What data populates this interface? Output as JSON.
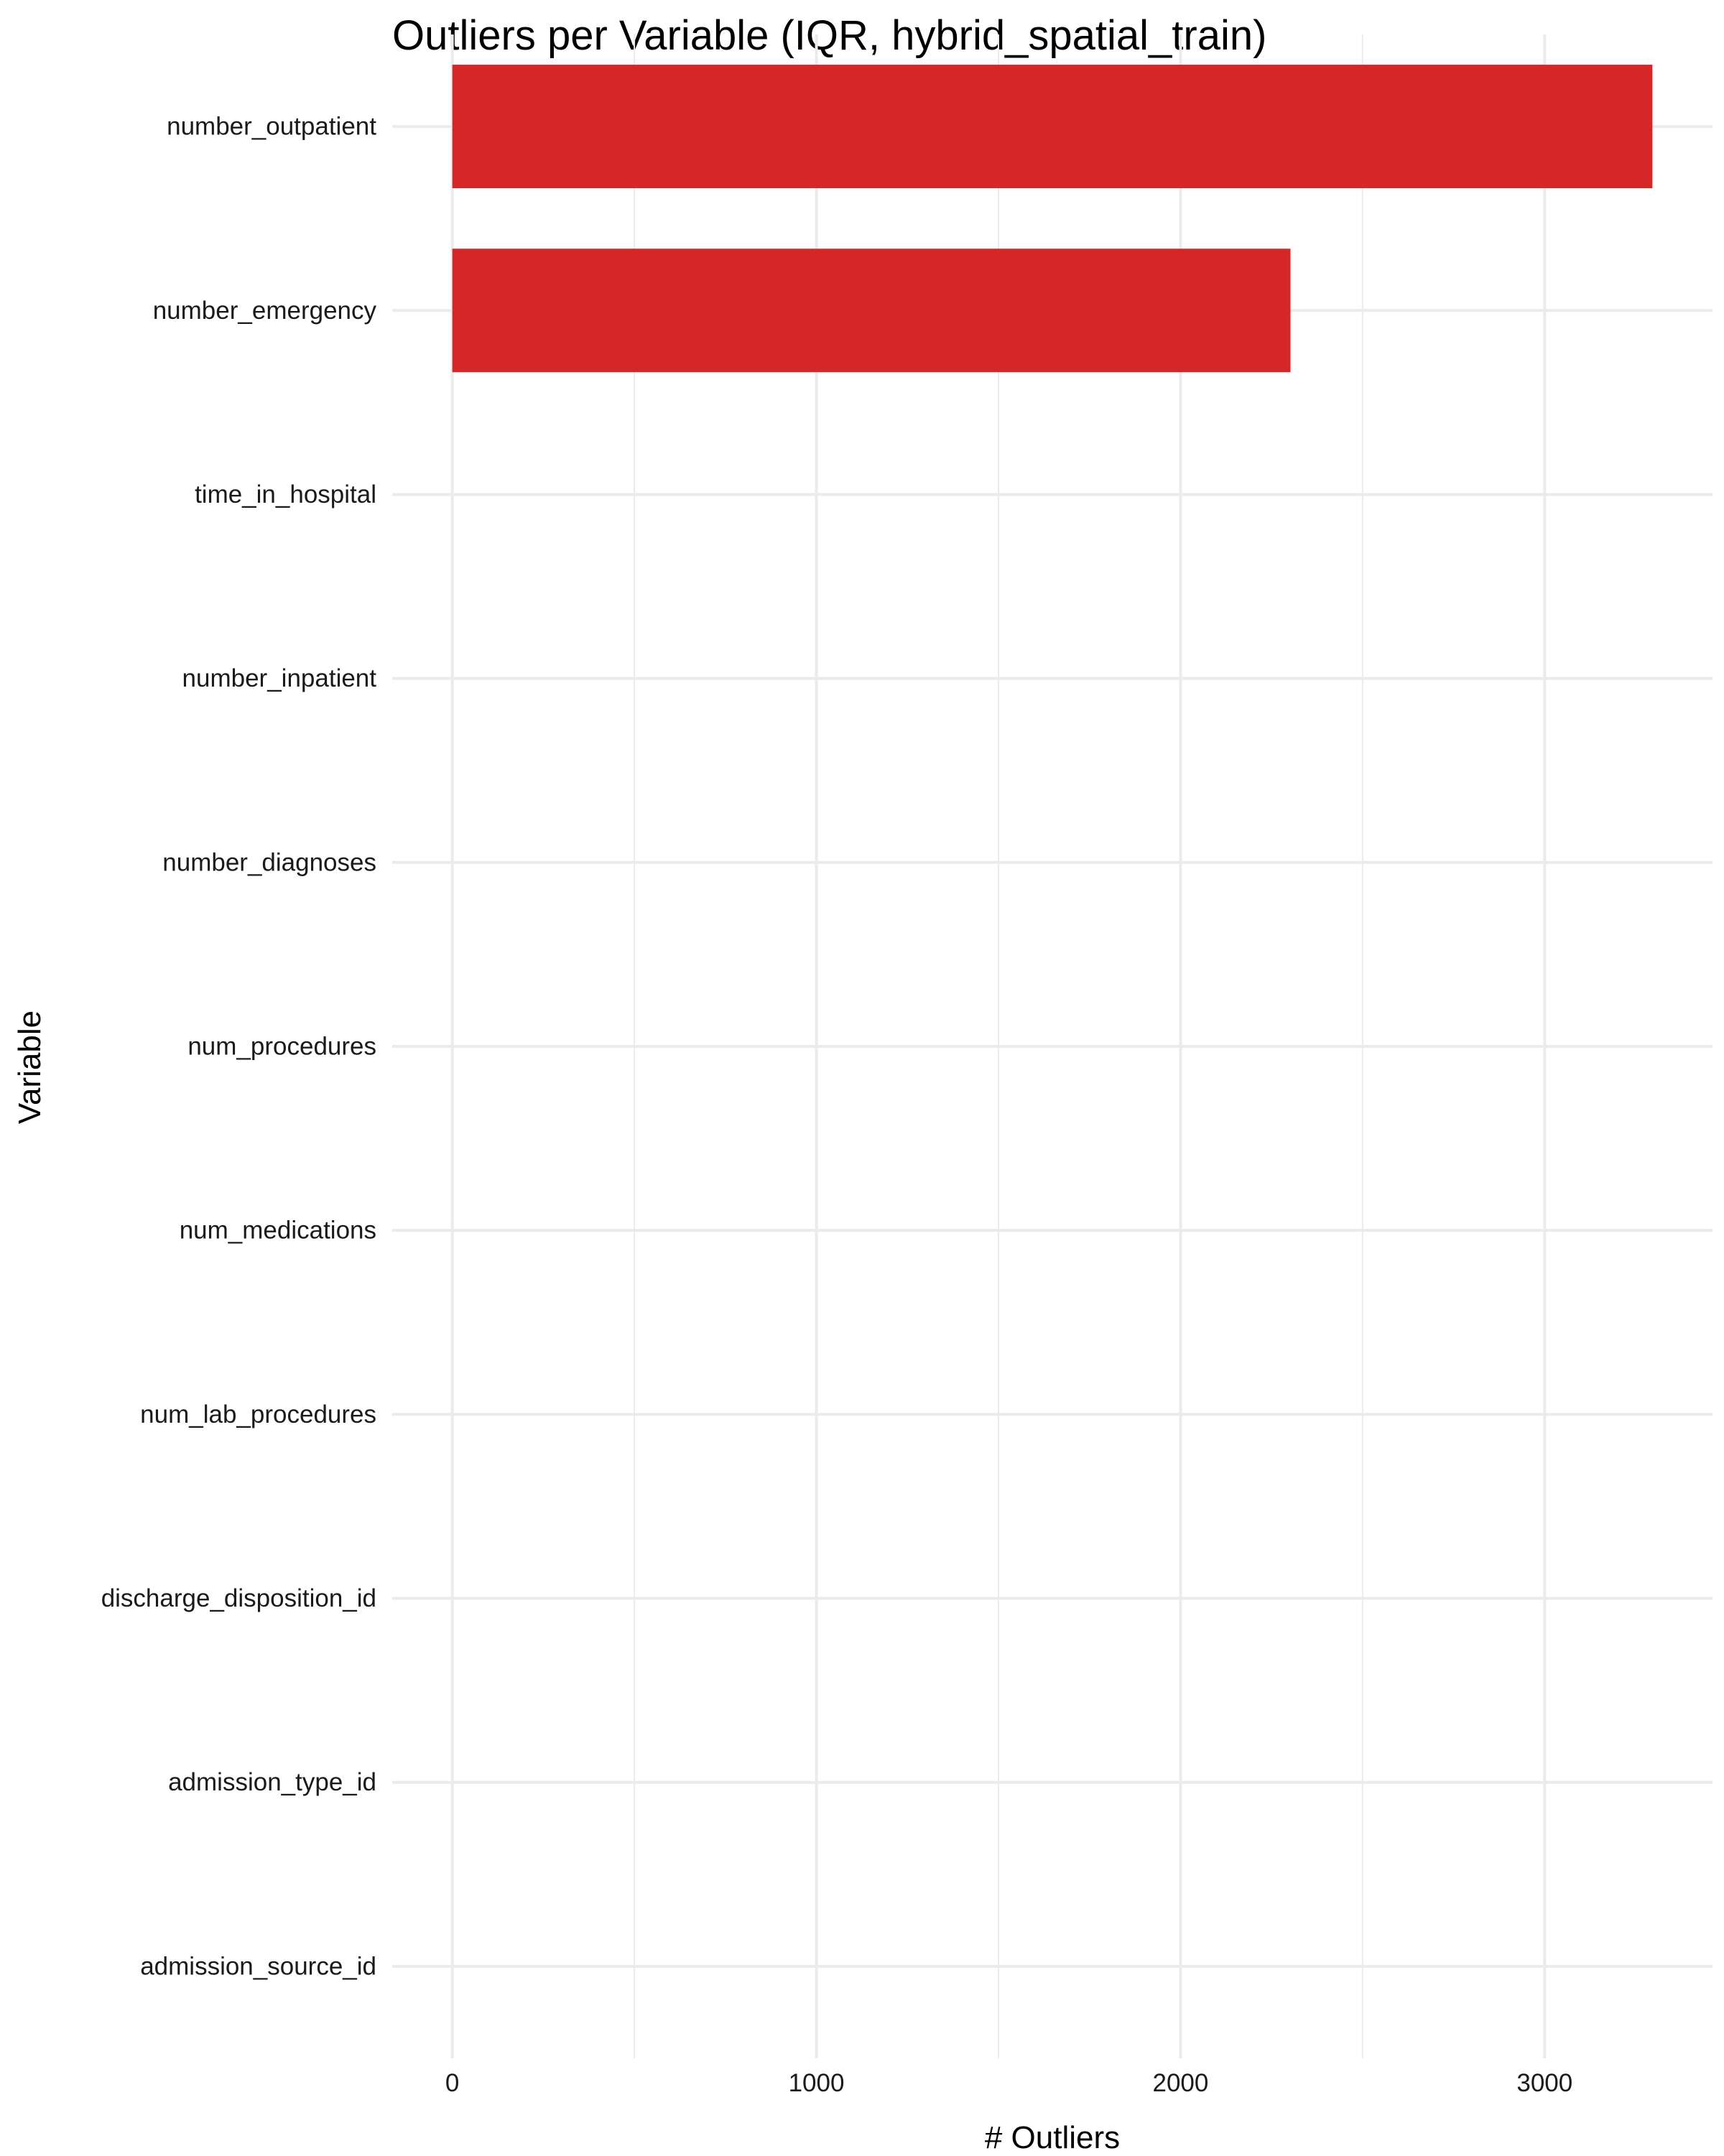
{
  "chart_data": {
    "type": "bar",
    "orientation": "horizontal",
    "title": "Outliers per Variable (IQR, hybrid_spatial_train)",
    "xlabel": "# Outliers",
    "ylabel": "Variable",
    "categories": [
      "number_outpatient",
      "number_emergency",
      "time_in_hospital",
      "number_inpatient",
      "number_diagnoses",
      "num_procedures",
      "num_medications",
      "num_lab_procedures",
      "discharge_disposition_id",
      "admission_type_id",
      "admission_source_id"
    ],
    "values": [
      3296,
      2302,
      0,
      0,
      0,
      0,
      0,
      0,
      0,
      0,
      0
    ],
    "xlim": [
      -165,
      3461
    ],
    "x_ticks": [
      0,
      1000,
      2000,
      3000
    ],
    "x_minor_ticks": [
      500,
      1500,
      2500
    ],
    "bar_color": "#D62728",
    "grid": true,
    "legend": "none"
  }
}
